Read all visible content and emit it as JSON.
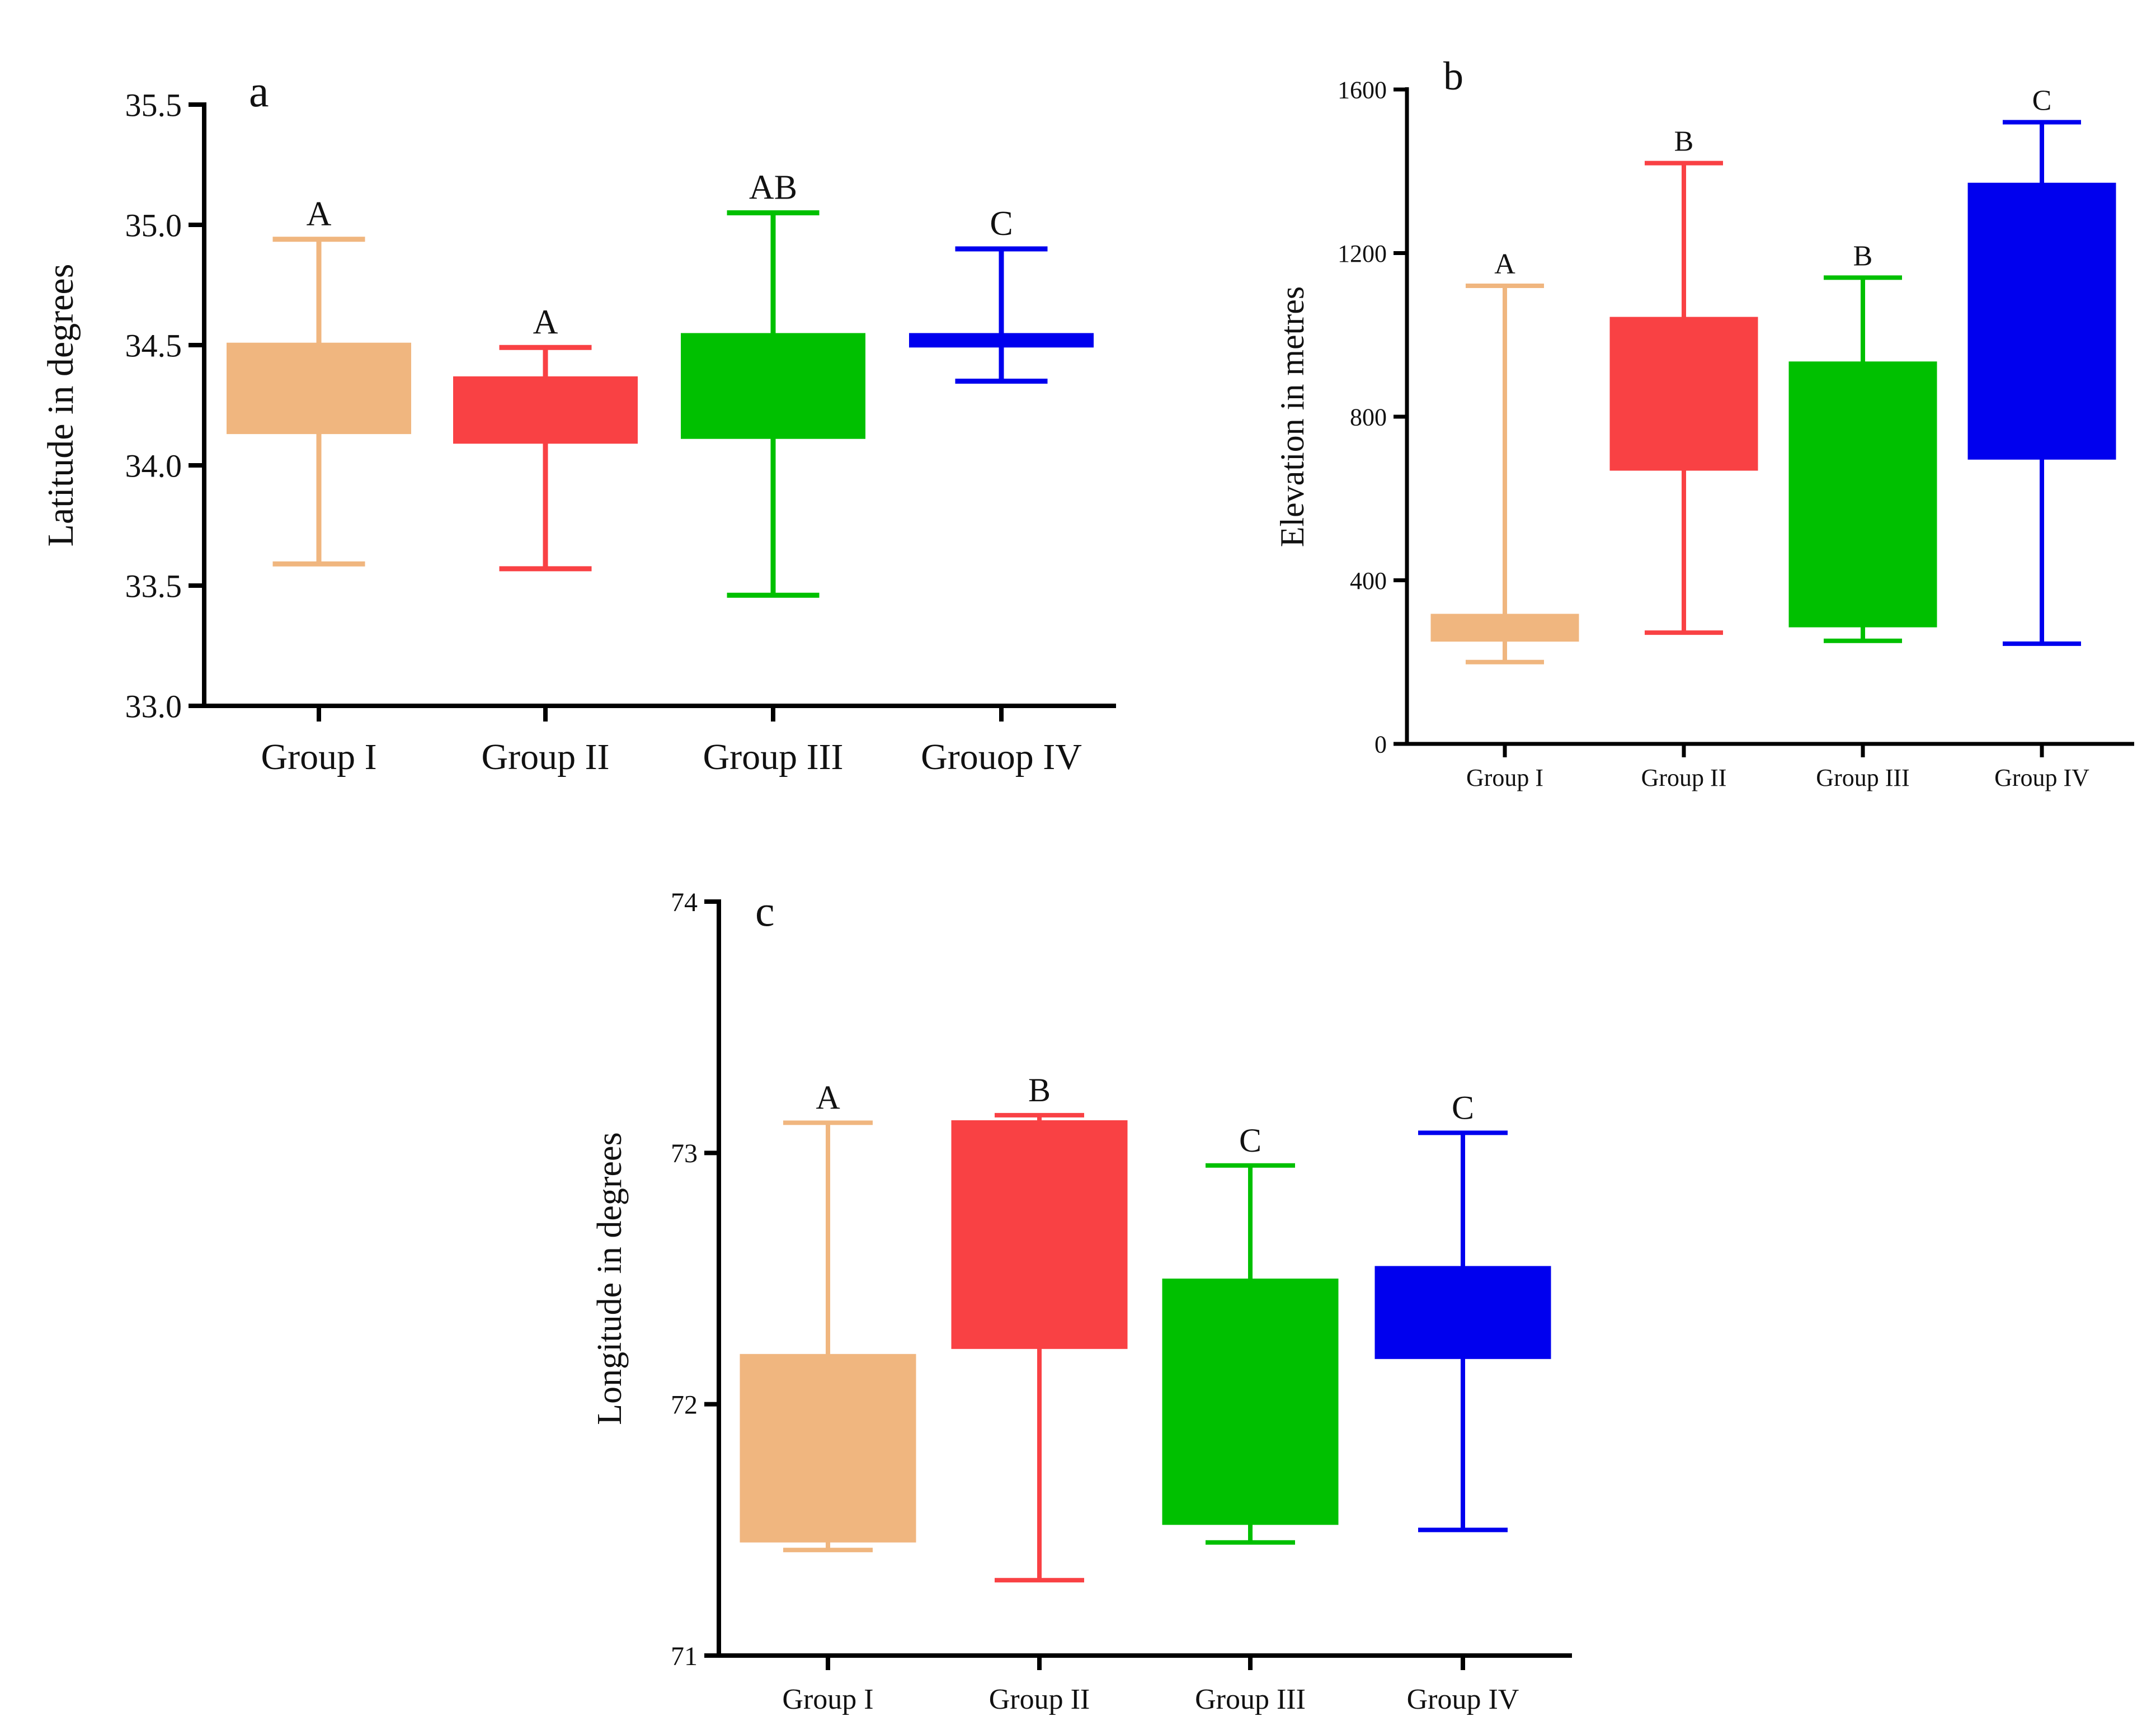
{
  "chart_data": [
    {
      "id": "a",
      "type": "boxplot",
      "panel_label": "a",
      "ylabel": "Latitude in degrees",
      "ylim": [
        33.0,
        35.5
      ],
      "yticks": [
        33.0,
        33.5,
        34.0,
        34.5,
        35.0,
        35.5
      ],
      "ytick_labels": [
        "33.0",
        "33.5",
        "34.0",
        "34.5",
        "35.0",
        "35.5"
      ],
      "categories": [
        "Group I",
        "Group II",
        "Group III",
        "Grouop IV"
      ],
      "colors": [
        "#F0B67F",
        "#F94144",
        "#00C000",
        "#0000EE"
      ],
      "boxes": [
        {
          "min": 33.59,
          "q1": 34.13,
          "q3": 34.51,
          "max": 34.94
        },
        {
          "min": 33.57,
          "q1": 34.09,
          "q3": 34.37,
          "max": 34.49
        },
        {
          "min": 33.46,
          "q1": 34.11,
          "q3": 34.55,
          "max": 35.05
        },
        {
          "min": 34.35,
          "q1": 34.49,
          "q3": 34.55,
          "max": 34.9
        }
      ],
      "letters": [
        "A",
        "A",
        "AB",
        "C"
      ]
    },
    {
      "id": "b",
      "type": "boxplot",
      "panel_label": "b",
      "ylabel": "Elevation in metres",
      "ylim": [
        0,
        1600
      ],
      "yticks": [
        0,
        400,
        800,
        1200,
        1600
      ],
      "ytick_labels": [
        "0",
        "400",
        "800",
        "1200",
        "1600"
      ],
      "categories": [
        "Group I",
        "Group II",
        "Group III",
        "Group IV"
      ],
      "colors": [
        "#F0B67F",
        "#F94144",
        "#00C000",
        "#0000EE"
      ],
      "boxes": [
        {
          "min": 200,
          "q1": 250,
          "q3": 318,
          "max": 1120
        },
        {
          "min": 272,
          "q1": 668,
          "q3": 1044,
          "max": 1420
        },
        {
          "min": 252,
          "q1": 285,
          "q3": 935,
          "max": 1140
        },
        {
          "min": 245,
          "q1": 695,
          "q3": 1372,
          "max": 1520
        }
      ],
      "letters": [
        "A",
        "B",
        "B",
        "C"
      ]
    },
    {
      "id": "c",
      "type": "boxplot",
      "panel_label": "c",
      "ylabel": "Longitude in degrees",
      "ylim": [
        71,
        74
      ],
      "yticks": [
        71,
        72,
        73,
        74
      ],
      "ytick_labels": [
        "71",
        "72",
        "73",
        "74"
      ],
      "categories": [
        "Group I",
        "Group II",
        "Group III",
        "Group IV"
      ],
      "colors": [
        "#F0B67F",
        "#F94144",
        "#00C000",
        "#0000EE"
      ],
      "boxes": [
        {
          "min": 71.42,
          "q1": 71.45,
          "q3": 72.2,
          "max": 73.12
        },
        {
          "min": 71.3,
          "q1": 72.22,
          "q3": 73.13,
          "max": 73.15
        },
        {
          "min": 71.45,
          "q1": 71.52,
          "q3": 72.5,
          "max": 72.95
        },
        {
          "min": 71.5,
          "q1": 72.18,
          "q3": 72.55,
          "max": 73.08
        }
      ],
      "letters": [
        "A",
        "B",
        "C",
        "C"
      ]
    }
  ]
}
